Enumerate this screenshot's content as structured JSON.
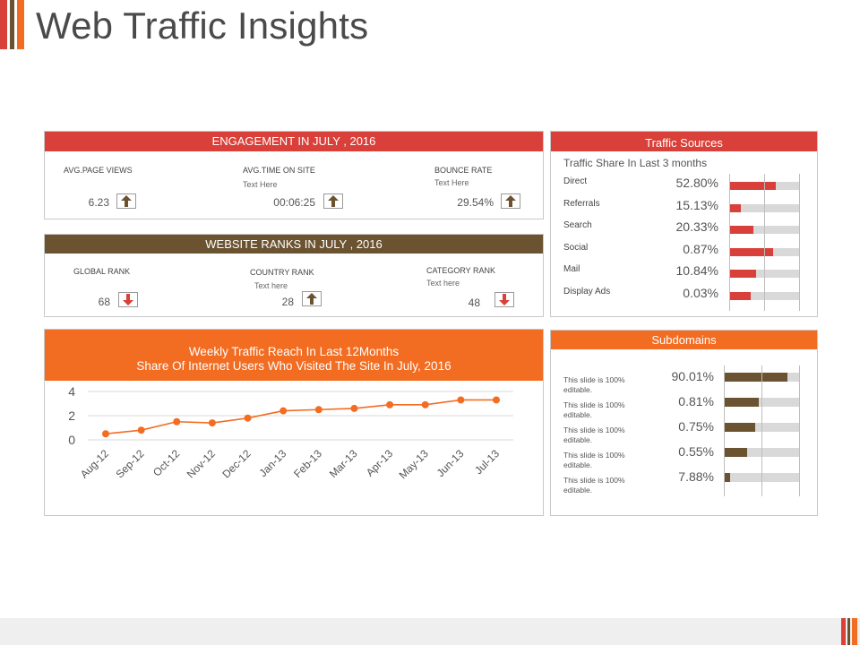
{
  "page": {
    "title": "Web Traffic Insights",
    "colors": {
      "red": "#d9403a",
      "brown": "#6b5331",
      "orange": "#f26c21"
    }
  },
  "engagement": {
    "header": "ENGAGEMENT IN JULY , 2016",
    "items": [
      {
        "label": "AVG.PAGE VIEWS",
        "sub": "",
        "value": "6.23",
        "trend": "up"
      },
      {
        "label": "AVG.TIME ON SITE",
        "sub": "Text Here",
        "value": "00:06:25",
        "trend": "up"
      },
      {
        "label": "BOUNCE RATE",
        "sub": "Text Here",
        "value": "29.54%",
        "trend": "up"
      }
    ]
  },
  "ranks": {
    "header": "WEBSITE RANKS IN JULY , 2016",
    "items": [
      {
        "label": "GLOBAL RANK",
        "sub": "",
        "value": "68",
        "trend": "down"
      },
      {
        "label": "COUNTRY RANK",
        "sub": "Text here",
        "value": "28",
        "trend": "up"
      },
      {
        "label": "CATEGORY RANK",
        "sub": "Text here",
        "value": "48",
        "trend": "down"
      }
    ]
  },
  "traffic_sources": {
    "header": "Traffic Sources",
    "subtitle": "Traffic Share In Last 3 months",
    "rows": [
      {
        "label": "Direct",
        "value": "52.80%",
        "fill": 0.67
      },
      {
        "label": "Referrals",
        "value": "15.13%",
        "fill": 0.17
      },
      {
        "label": "Search",
        "value": "20.33%",
        "fill": 0.35
      },
      {
        "label": "Social",
        "value": "0.87%",
        "fill": 0.63
      },
      {
        "label": "Mail",
        "value": "10.84%",
        "fill": 0.38
      },
      {
        "label": "Display Ads",
        "value": "0.03%",
        "fill": 0.31
      }
    ]
  },
  "subdomains": {
    "header": "Subdomains",
    "rows": [
      {
        "label": "This slide is 100% editable.",
        "value": "90.01%",
        "fill": 0.84
      },
      {
        "label": "This slide is 100% editable.",
        "value": "0.81%",
        "fill": 0.47
      },
      {
        "label": "This slide is 100% editable.",
        "value": "0.75%",
        "fill": 0.42
      },
      {
        "label": "This slide is 100% editable.",
        "value": "0.55%",
        "fill": 0.31
      },
      {
        "label": "This slide is 100% editable.",
        "value": "7.88%",
        "fill": 0.08
      }
    ]
  },
  "weekly": {
    "header_line1": "Weekly Traffic Reach In Last 12Months",
    "header_line2": "Share Of Internet Users Who Visited The Site In July, 2016"
  },
  "chart_data": {
    "type": "line",
    "categories": [
      "Aug-12",
      "Sep-12",
      "Oct-12",
      "Nov-12",
      "Dec-12",
      "Jan-13",
      "Feb-13",
      "Mar-13",
      "Apr-13",
      "May-13",
      "Jun-13",
      "Jul-13"
    ],
    "values": [
      0.5,
      0.8,
      1.5,
      1.4,
      1.8,
      2.4,
      2.5,
      2.6,
      2.9,
      2.9,
      3.3,
      3.3
    ],
    "yticks": [
      0,
      2,
      4
    ],
    "ylim": [
      0,
      4
    ],
    "color": "#f26c21",
    "grid": true
  }
}
